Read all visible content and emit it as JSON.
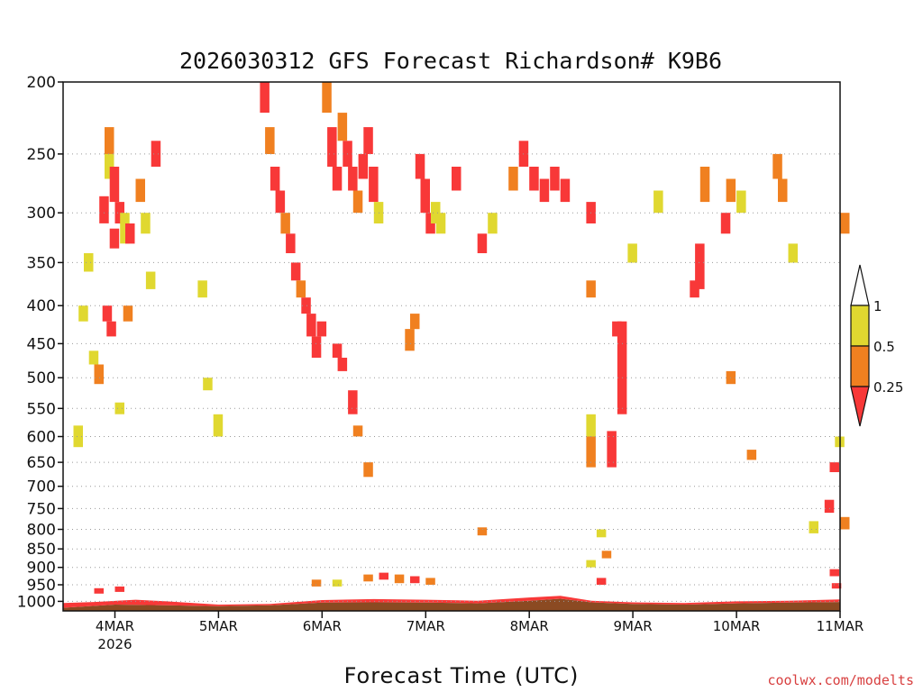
{
  "chart_data": {
    "type": "heatmap",
    "title": "2026030312 GFS Forecast Richardson# K9B6",
    "xlabel": "Forecast Time (UTC)",
    "ylabel": "",
    "x_ticks": [
      "4MAR",
      "5MAR",
      "6MAR",
      "7MAR",
      "8MAR",
      "9MAR",
      "10MAR",
      "11MAR"
    ],
    "x_year_label": "2026",
    "x_range_days": [
      3.5,
      11.0
    ],
    "y_ticks": [
      200,
      250,
      300,
      350,
      400,
      450,
      500,
      550,
      600,
      650,
      700,
      750,
      800,
      850,
      900,
      950,
      1000
    ],
    "y_scale": "log-pressure",
    "y_range_hpa": [
      200,
      1030
    ],
    "grid": "horizontal dotted at pressure ticks",
    "colorbar": {
      "labels": [
        "1",
        "0.5",
        "0.25"
      ],
      "bins": [
        {
          "range": "0.5-1",
          "color": "#e0d830"
        },
        {
          "range": "0.25-0.5",
          "color": "#f08020"
        },
        {
          "range": "<0.25",
          "color": "#f83838"
        },
        {
          "range": ">1",
          "color": "#ffffff"
        }
      ]
    },
    "colors": {
      "yellow": "#e0d830",
      "orange": "#f08020",
      "red": "#f83838",
      "ground": "#8b4a22"
    },
    "cells": [
      [
        3.9,
        230,
        250,
        "orange"
      ],
      [
        3.9,
        250,
        270,
        "yellow"
      ],
      [
        3.95,
        260,
        290,
        "red"
      ],
      [
        3.85,
        285,
        310,
        "red"
      ],
      [
        3.95,
        315,
        335,
        "red"
      ],
      [
        4.0,
        290,
        310,
        "red"
      ],
      [
        4.05,
        300,
        330,
        "yellow"
      ],
      [
        4.1,
        310,
        330,
        "red"
      ],
      [
        4.2,
        270,
        290,
        "orange"
      ],
      [
        4.25,
        300,
        320,
        "yellow"
      ],
      [
        4.3,
        360,
        380,
        "yellow"
      ],
      [
        4.35,
        240,
        260,
        "red"
      ],
      [
        3.88,
        400,
        420,
        "red"
      ],
      [
        3.92,
        420,
        440,
        "red"
      ],
      [
        4.08,
        400,
        420,
        "orange"
      ],
      [
        3.7,
        340,
        360,
        "yellow"
      ],
      [
        3.65,
        400,
        420,
        "yellow"
      ],
      [
        3.75,
        460,
        480,
        "yellow"
      ],
      [
        3.8,
        480,
        510,
        "orange"
      ],
      [
        3.6,
        580,
        620,
        "yellow"
      ],
      [
        4.0,
        540,
        560,
        "yellow"
      ],
      [
        4.8,
        370,
        390,
        "yellow"
      ],
      [
        4.85,
        500,
        520,
        "yellow"
      ],
      [
        4.95,
        560,
        600,
        "yellow"
      ],
      [
        5.4,
        200,
        220,
        "red"
      ],
      [
        5.45,
        230,
        250,
        "orange"
      ],
      [
        5.5,
        260,
        280,
        "red"
      ],
      [
        5.55,
        280,
        300,
        "red"
      ],
      [
        5.6,
        300,
        320,
        "orange"
      ],
      [
        5.65,
        320,
        340,
        "red"
      ],
      [
        5.7,
        350,
        370,
        "red"
      ],
      [
        5.75,
        370,
        390,
        "orange"
      ],
      [
        5.8,
        390,
        410,
        "red"
      ],
      [
        5.85,
        410,
        440,
        "red"
      ],
      [
        5.9,
        440,
        470,
        "red"
      ],
      [
        5.95,
        420,
        440,
        "red"
      ],
      [
        6.0,
        200,
        220,
        "orange"
      ],
      [
        6.05,
        230,
        260,
        "red"
      ],
      [
        6.1,
        260,
        280,
        "red"
      ],
      [
        6.15,
        220,
        240,
        "orange"
      ],
      [
        6.2,
        240,
        260,
        "red"
      ],
      [
        6.25,
        260,
        280,
        "red"
      ],
      [
        6.3,
        280,
        300,
        "orange"
      ],
      [
        6.35,
        250,
        270,
        "red"
      ],
      [
        6.4,
        230,
        250,
        "red"
      ],
      [
        6.45,
        260,
        290,
        "red"
      ],
      [
        6.5,
        290,
        310,
        "yellow"
      ],
      [
        6.1,
        450,
        470,
        "red"
      ],
      [
        6.15,
        470,
        490,
        "red"
      ],
      [
        6.25,
        520,
        560,
        "red"
      ],
      [
        6.3,
        580,
        600,
        "orange"
      ],
      [
        6.4,
        650,
        680,
        "orange"
      ],
      [
        6.9,
        250,
        270,
        "red"
      ],
      [
        6.95,
        270,
        300,
        "red"
      ],
      [
        7.0,
        300,
        320,
        "red"
      ],
      [
        7.05,
        290,
        310,
        "yellow"
      ],
      [
        7.1,
        300,
        320,
        "yellow"
      ],
      [
        7.25,
        260,
        280,
        "red"
      ],
      [
        6.85,
        410,
        430,
        "orange"
      ],
      [
        6.8,
        430,
        460,
        "orange"
      ],
      [
        7.5,
        320,
        340,
        "red"
      ],
      [
        7.6,
        300,
        320,
        "yellow"
      ],
      [
        7.8,
        260,
        280,
        "orange"
      ],
      [
        7.9,
        240,
        260,
        "red"
      ],
      [
        8.0,
        260,
        280,
        "red"
      ],
      [
        8.1,
        270,
        290,
        "red"
      ],
      [
        8.2,
        260,
        280,
        "red"
      ],
      [
        8.3,
        270,
        290,
        "red"
      ],
      [
        8.55,
        290,
        310,
        "red"
      ],
      [
        8.55,
        370,
        390,
        "orange"
      ],
      [
        8.55,
        600,
        660,
        "orange"
      ],
      [
        8.55,
        560,
        600,
        "yellow"
      ],
      [
        8.75,
        590,
        660,
        "red"
      ],
      [
        8.85,
        420,
        560,
        "red"
      ],
      [
        8.8,
        420,
        440,
        "red"
      ],
      [
        8.95,
        330,
        350,
        "yellow"
      ],
      [
        9.2,
        280,
        300,
        "yellow"
      ],
      [
        9.55,
        370,
        390,
        "red"
      ],
      [
        9.6,
        330,
        380,
        "red"
      ],
      [
        9.65,
        260,
        290,
        "orange"
      ],
      [
        9.85,
        300,
        320,
        "red"
      ],
      [
        9.9,
        270,
        290,
        "orange"
      ],
      [
        9.9,
        490,
        510,
        "orange"
      ],
      [
        10.0,
        280,
        300,
        "yellow"
      ],
      [
        10.1,
        625,
        645,
        "orange"
      ],
      [
        10.35,
        250,
        270,
        "orange"
      ],
      [
        10.4,
        270,
        290,
        "orange"
      ],
      [
        10.5,
        330,
        350,
        "yellow"
      ],
      [
        10.7,
        780,
        810,
        "yellow"
      ],
      [
        10.85,
        730,
        760,
        "red"
      ],
      [
        10.9,
        650,
        670,
        "red"
      ],
      [
        10.95,
        600,
        620,
        "yellow"
      ],
      [
        11.0,
        300,
        320,
        "orange"
      ],
      [
        11.0,
        770,
        800,
        "orange"
      ],
      [
        6.4,
        920,
        940,
        "orange"
      ],
      [
        6.55,
        915,
        935,
        "red"
      ],
      [
        6.7,
        920,
        945,
        "orange"
      ],
      [
        6.85,
        925,
        945,
        "red"
      ],
      [
        7.0,
        930,
        950,
        "orange"
      ],
      [
        5.9,
        935,
        955,
        "orange"
      ],
      [
        6.1,
        935,
        955,
        "yellow"
      ],
      [
        7.5,
        795,
        815,
        "orange"
      ],
      [
        8.65,
        800,
        820,
        "yellow"
      ],
      [
        8.7,
        855,
        875,
        "orange"
      ],
      [
        8.55,
        880,
        900,
        "yellow"
      ],
      [
        8.65,
        930,
        950,
        "red"
      ],
      [
        10.9,
        905,
        925,
        "red"
      ],
      [
        10.92,
        945,
        960,
        "red"
      ],
      [
        3.8,
        960,
        975,
        "red"
      ],
      [
        4.0,
        955,
        970,
        "red"
      ],
      [
        4.3,
        1000,
        1010,
        "red"
      ]
    ],
    "surface_band": [
      [
        3.5,
        1020
      ],
      [
        4.0,
        1010
      ],
      [
        4.5,
        1012
      ],
      [
        5.0,
        1015
      ],
      [
        5.5,
        1012
      ],
      [
        6.0,
        1004
      ],
      [
        6.5,
        1003
      ],
      [
        7.0,
        1004
      ],
      [
        7.5,
        1006
      ],
      [
        8.0,
        998
      ],
      [
        8.3,
        992
      ],
      [
        8.6,
        1003
      ],
      [
        9.0,
        1008
      ],
      [
        9.5,
        1010
      ],
      [
        10.0,
        1006
      ],
      [
        10.5,
        1004
      ],
      [
        11.0,
        1002
      ]
    ],
    "surface_red": [
      [
        3.5,
        1005
      ],
      [
        3.8,
        1002
      ],
      [
        4.2,
        995
      ],
      [
        4.5,
        1000
      ],
      [
        5.0,
        1010
      ],
      [
        5.5,
        1008
      ],
      [
        6.0,
        996
      ],
      [
        6.5,
        993
      ],
      [
        7.0,
        995
      ],
      [
        7.5,
        998
      ],
      [
        8.0,
        988
      ],
      [
        8.3,
        983
      ],
      [
        8.6,
        998
      ],
      [
        9.0,
        1003
      ],
      [
        9.5,
        1005
      ],
      [
        10.0,
        1000
      ],
      [
        10.5,
        998
      ],
      [
        11.0,
        994
      ]
    ],
    "annotation": "coolwx.com/modelts"
  }
}
